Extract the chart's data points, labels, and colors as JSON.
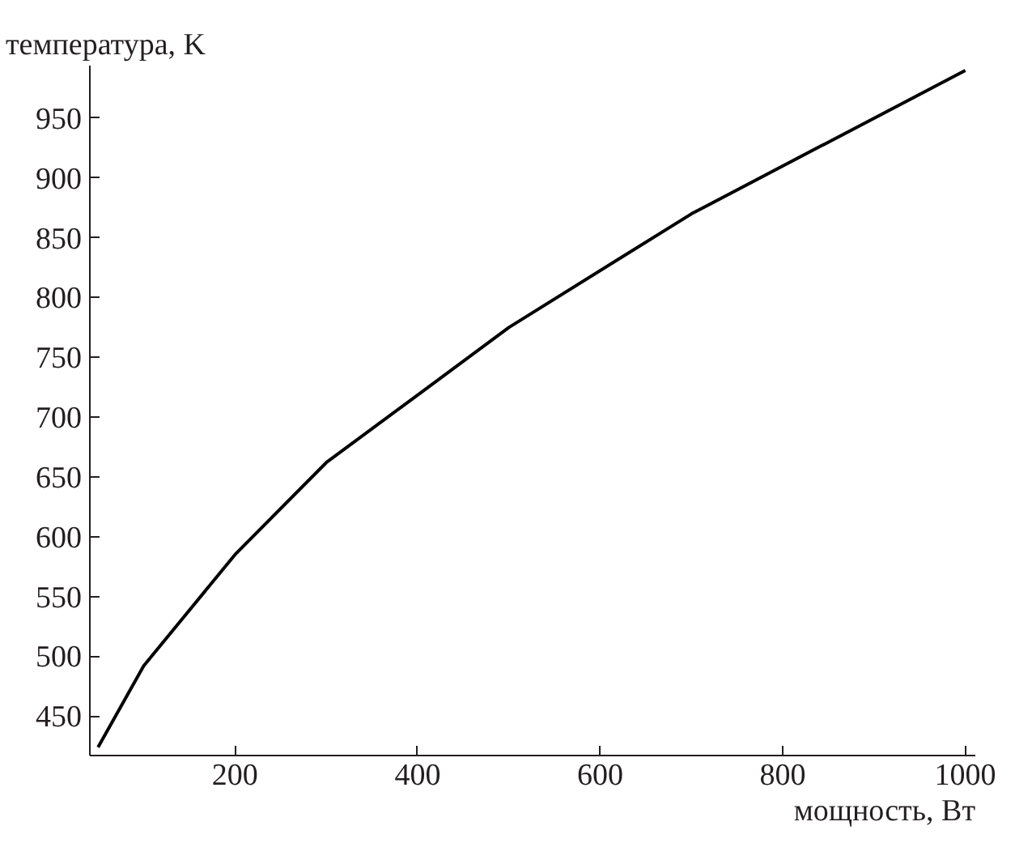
{
  "chart_data": {
    "type": "line",
    "xlabel": "мощность, Вт",
    "ylabel": "температура, K",
    "x": [
      50,
      100,
      200,
      300,
      500,
      700,
      1000
    ],
    "series": [
      {
        "color": "#000000",
        "values": [
          424,
          492,
          585,
          662,
          775,
          870,
          990
        ]
      }
    ],
    "xlim": [
      41,
      1011
    ],
    "ylim": [
      417,
      994
    ],
    "xticks": [
      200,
      400,
      600,
      800,
      1000
    ],
    "yticks": [
      450,
      500,
      550,
      600,
      650,
      700,
      750,
      800,
      850,
      900,
      950
    ],
    "grid": false,
    "marker": "none",
    "line_style": "solid"
  }
}
